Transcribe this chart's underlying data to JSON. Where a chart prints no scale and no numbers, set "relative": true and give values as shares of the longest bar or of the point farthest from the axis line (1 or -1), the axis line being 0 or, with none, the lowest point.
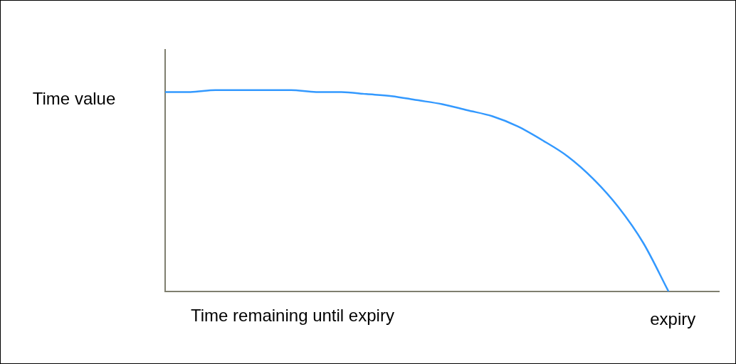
{
  "chart_data": {
    "type": "line",
    "relative": true,
    "xlabel": "Time remaining until expiry",
    "ylabel": "Time value",
    "annotations": [
      "expiry"
    ],
    "categories": [
      null,
      null,
      null,
      null,
      null,
      null,
      null,
      null,
      null,
      null,
      null,
      null,
      null,
      null,
      null,
      null,
      null,
      null,
      null,
      null,
      null,
      null,
      null
    ],
    "series": [
      {
        "color": "#3399ff",
        "values": [
          0.99,
          0.99,
          1,
          1,
          1,
          1,
          0.99,
          0.99,
          0.98,
          0.97,
          0.95,
          0.93,
          0.9,
          0.87,
          0.82,
          0.75,
          0.67,
          0.56,
          0.42,
          0.24,
          0,
          null,
          null
        ]
      }
    ],
    "tick_labels": false,
    "grid": false,
    "legend": false,
    "marker": "none",
    "line_style": "solid"
  }
}
